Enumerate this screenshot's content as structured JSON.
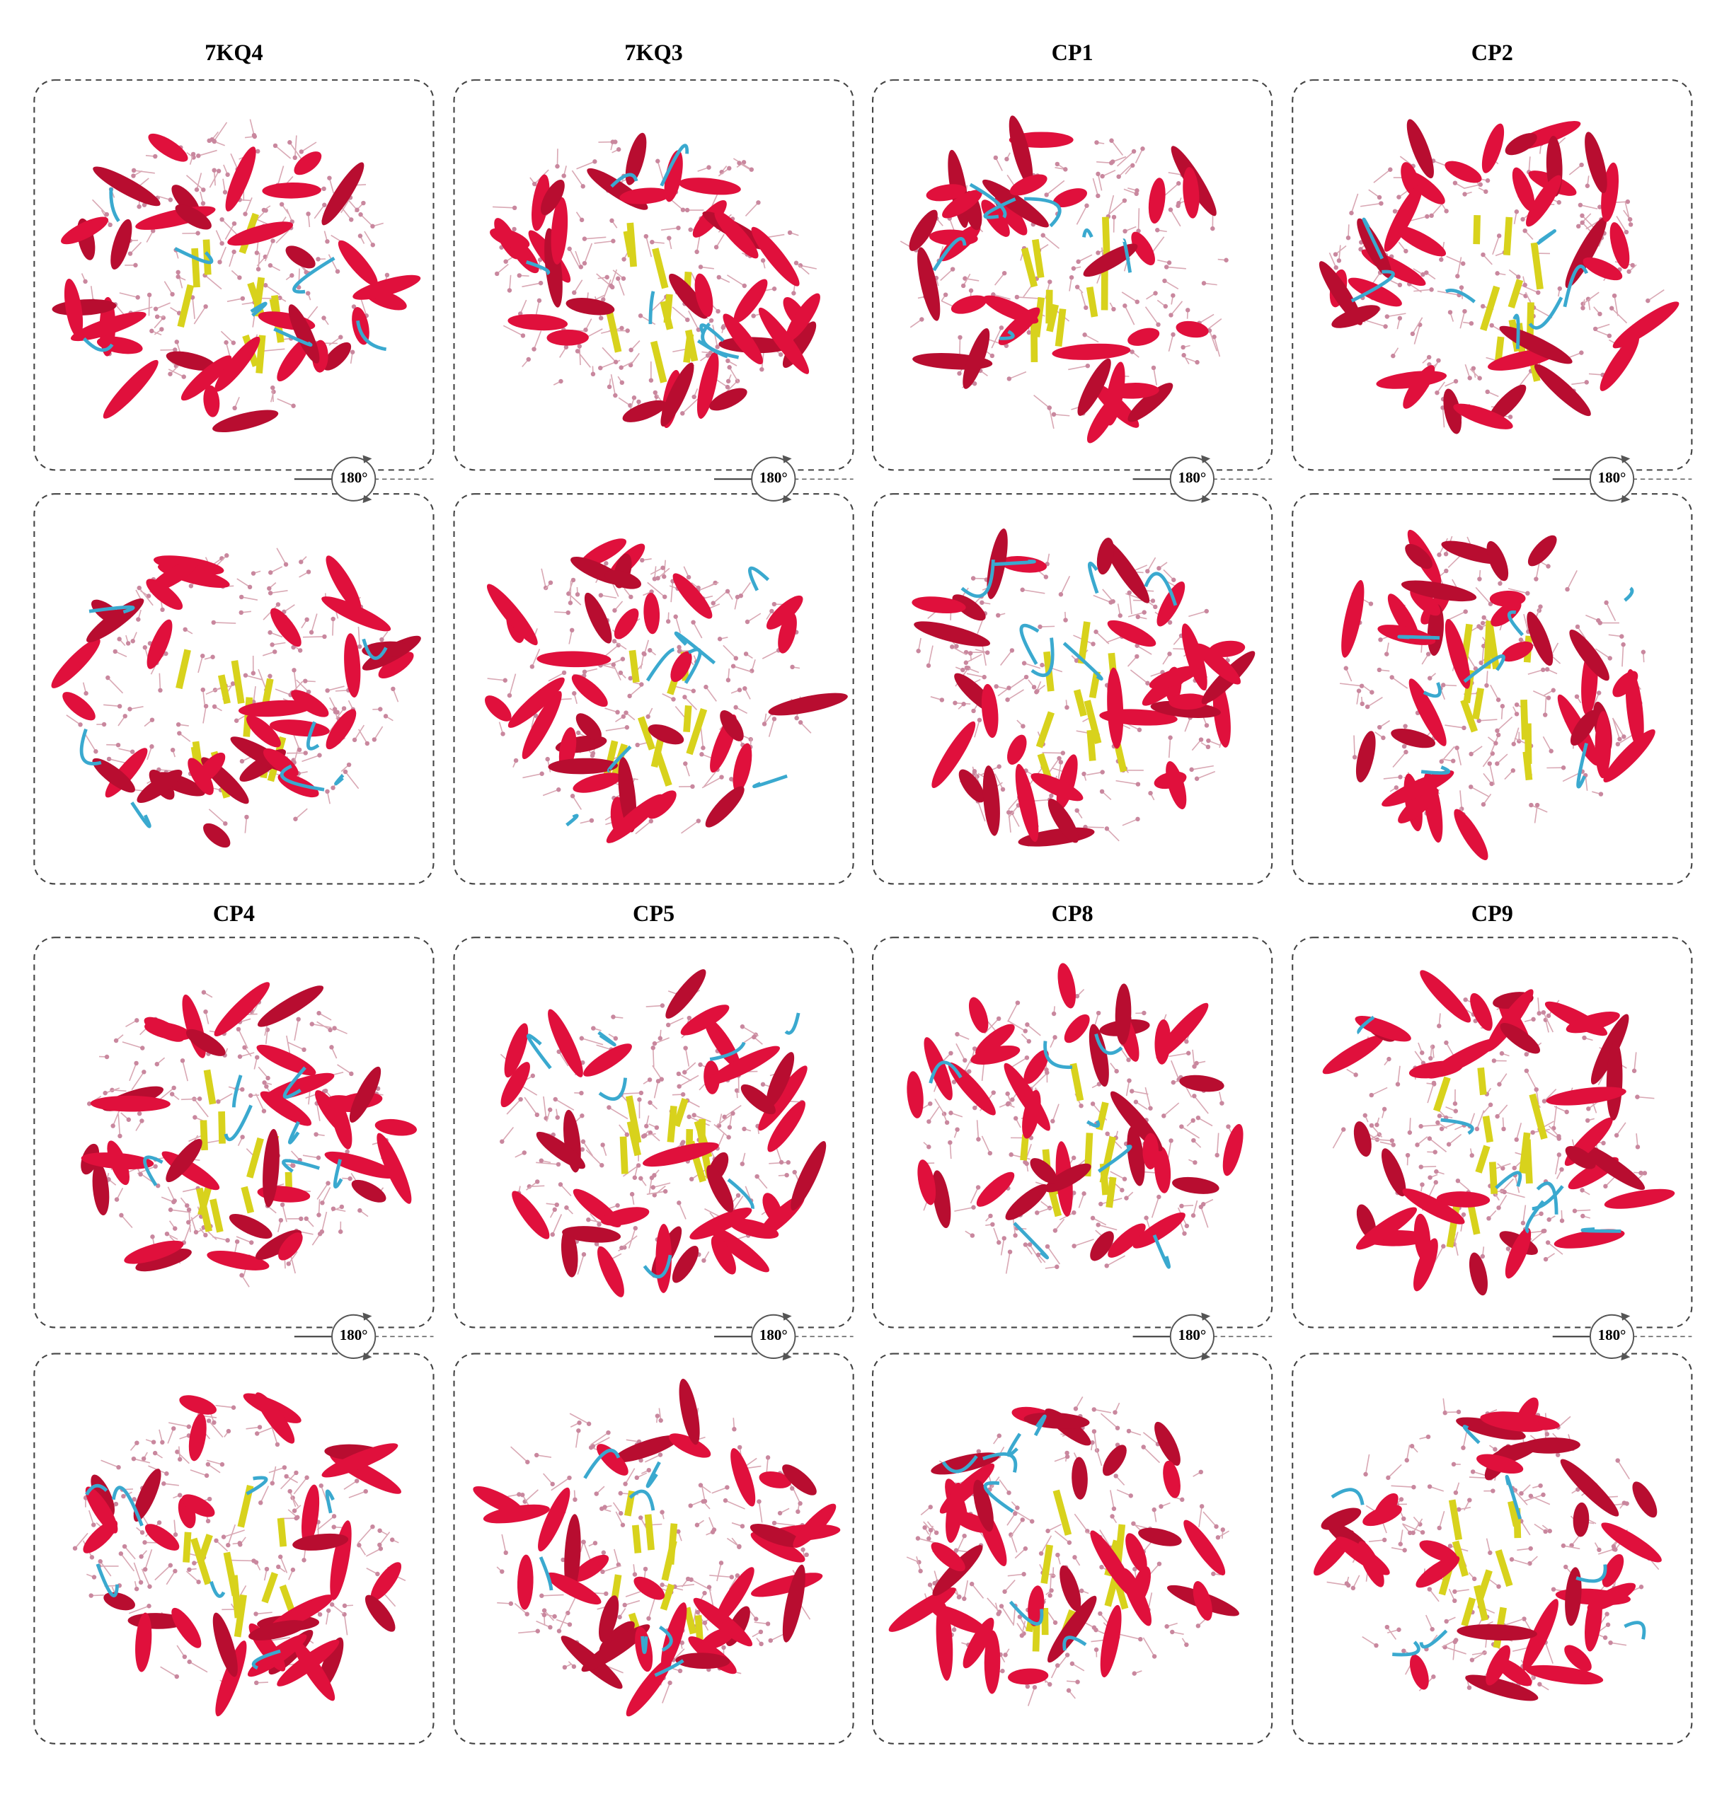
{
  "panels": [
    {
      "title": "7KQ4",
      "rotation": "180°"
    },
    {
      "title": "7KQ3",
      "rotation": "180°"
    },
    {
      "title": "CP1",
      "rotation": "180°"
    },
    {
      "title": "CP2",
      "rotation": "180°"
    },
    {
      "title": "CP4",
      "rotation": "180°"
    },
    {
      "title": "CP5",
      "rotation": "180°"
    },
    {
      "title": "CP8",
      "rotation": "180°"
    },
    {
      "title": "CP9",
      "rotation": "180°"
    }
  ]
}
